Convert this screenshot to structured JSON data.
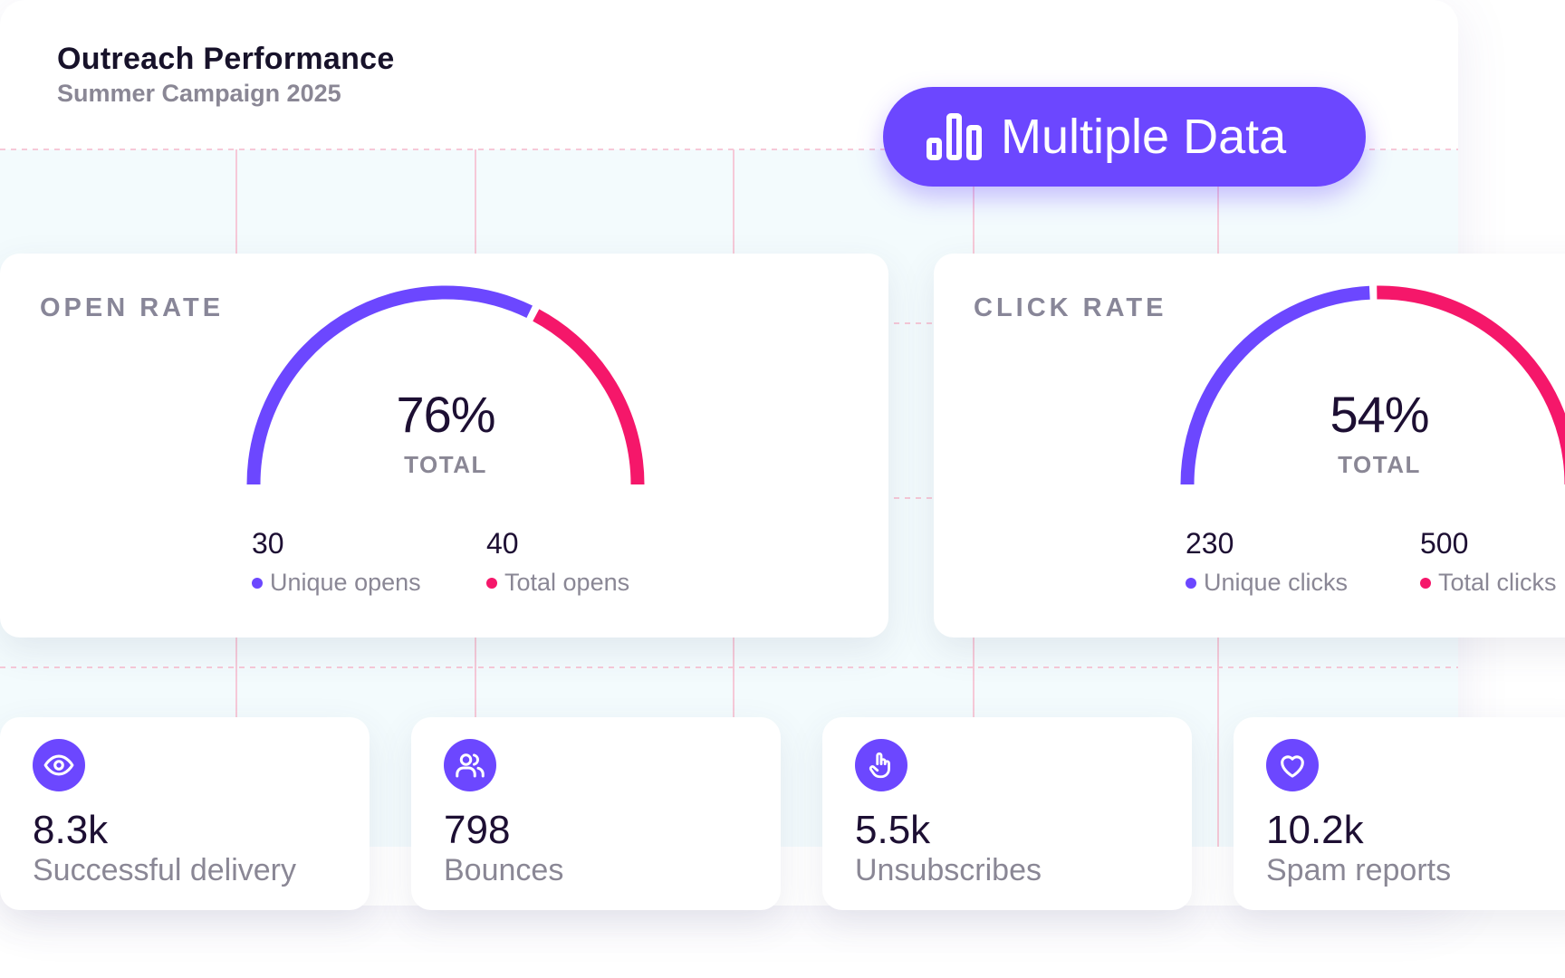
{
  "header": {
    "title": "Outreach Performance",
    "subtitle": "Summer Campaign 2025"
  },
  "badge": {
    "label": "Multiple Data",
    "icon": "bar-chart-icon",
    "color": "#6c47ff"
  },
  "colors": {
    "primary": "#6c47ff",
    "accent": "#f5176a"
  },
  "gauges": [
    {
      "title": "OPEN RATE",
      "percent": "76%",
      "total_label": "TOTAL",
      "primary_value": "30",
      "primary_label": "Unique opens",
      "secondary_value": "40",
      "secondary_label": "Total opens",
      "primary_fraction": 0.65
    },
    {
      "title": "CLICK RATE",
      "percent": "54%",
      "total_label": "TOTAL",
      "primary_value": "230",
      "primary_label": "Unique clicks",
      "secondary_value": "500",
      "secondary_label": "Total clicks",
      "primary_fraction": 0.49
    }
  ],
  "stats": [
    {
      "icon": "eye-icon",
      "value": "8.3k",
      "label": "Successful delivery"
    },
    {
      "icon": "users-icon",
      "value": "798",
      "label": "Bounces"
    },
    {
      "icon": "pointer-hand-icon",
      "value": "5.5k",
      "label": "Unsubscribes"
    },
    {
      "icon": "heart-icon",
      "value": "10.2k",
      "label": "Spam reports"
    }
  ]
}
